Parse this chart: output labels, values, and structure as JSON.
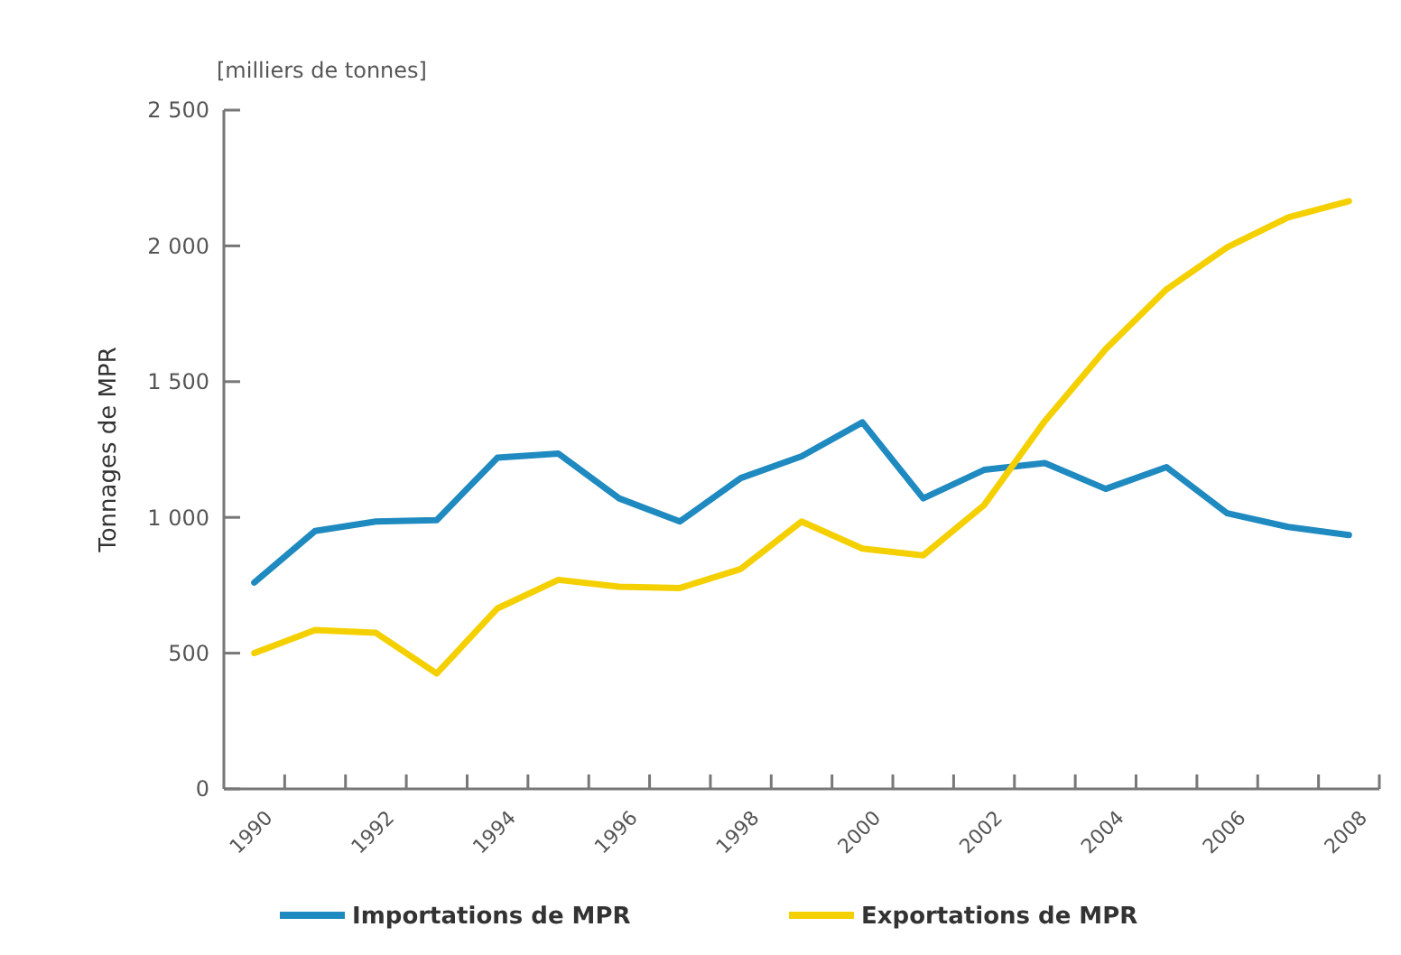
{
  "chart_data": {
    "type": "line",
    "ylabel": "Tonnages de MPR",
    "annotations": [
      "[milliers de tonnes]"
    ],
    "categories": [
      "1990",
      null,
      "1992",
      null,
      "1994",
      null,
      "1996",
      null,
      "1998",
      null,
      "2000",
      null,
      "2002",
      null,
      "2004",
      null,
      "2006",
      null,
      "2008"
    ],
    "series": [
      {
        "name": "Importations de MPR",
        "color": "#1f8ac0",
        "values": [
          760,
          950,
          985,
          990,
          1220,
          1235,
          1070,
          985,
          1145,
          1225,
          1350,
          1070,
          1175,
          1200,
          1105,
          1185,
          1015,
          965,
          935
        ]
      },
      {
        "name": "Exportations de MPR",
        "color": "#f5d000",
        "values": [
          500,
          585,
          575,
          425,
          665,
          770,
          745,
          740,
          810,
          985,
          885,
          860,
          1045,
          1355,
          1620,
          1840,
          1995,
          2105,
          2165
        ]
      }
    ],
    "ylim": [
      0,
      2500
    ],
    "yticks": [
      0,
      {
        "value": 500,
        "label": "500"
      },
      {
        "value": 1000,
        "label": "1 000"
      },
      {
        "value": 1500,
        "label": "1 500"
      },
      {
        "value": 2000,
        "label": "2 000"
      },
      {
        "value": 2500,
        "label": "2 500"
      }
    ],
    "legend": "bottom",
    "marker": "none",
    "line_style": "solid"
  }
}
